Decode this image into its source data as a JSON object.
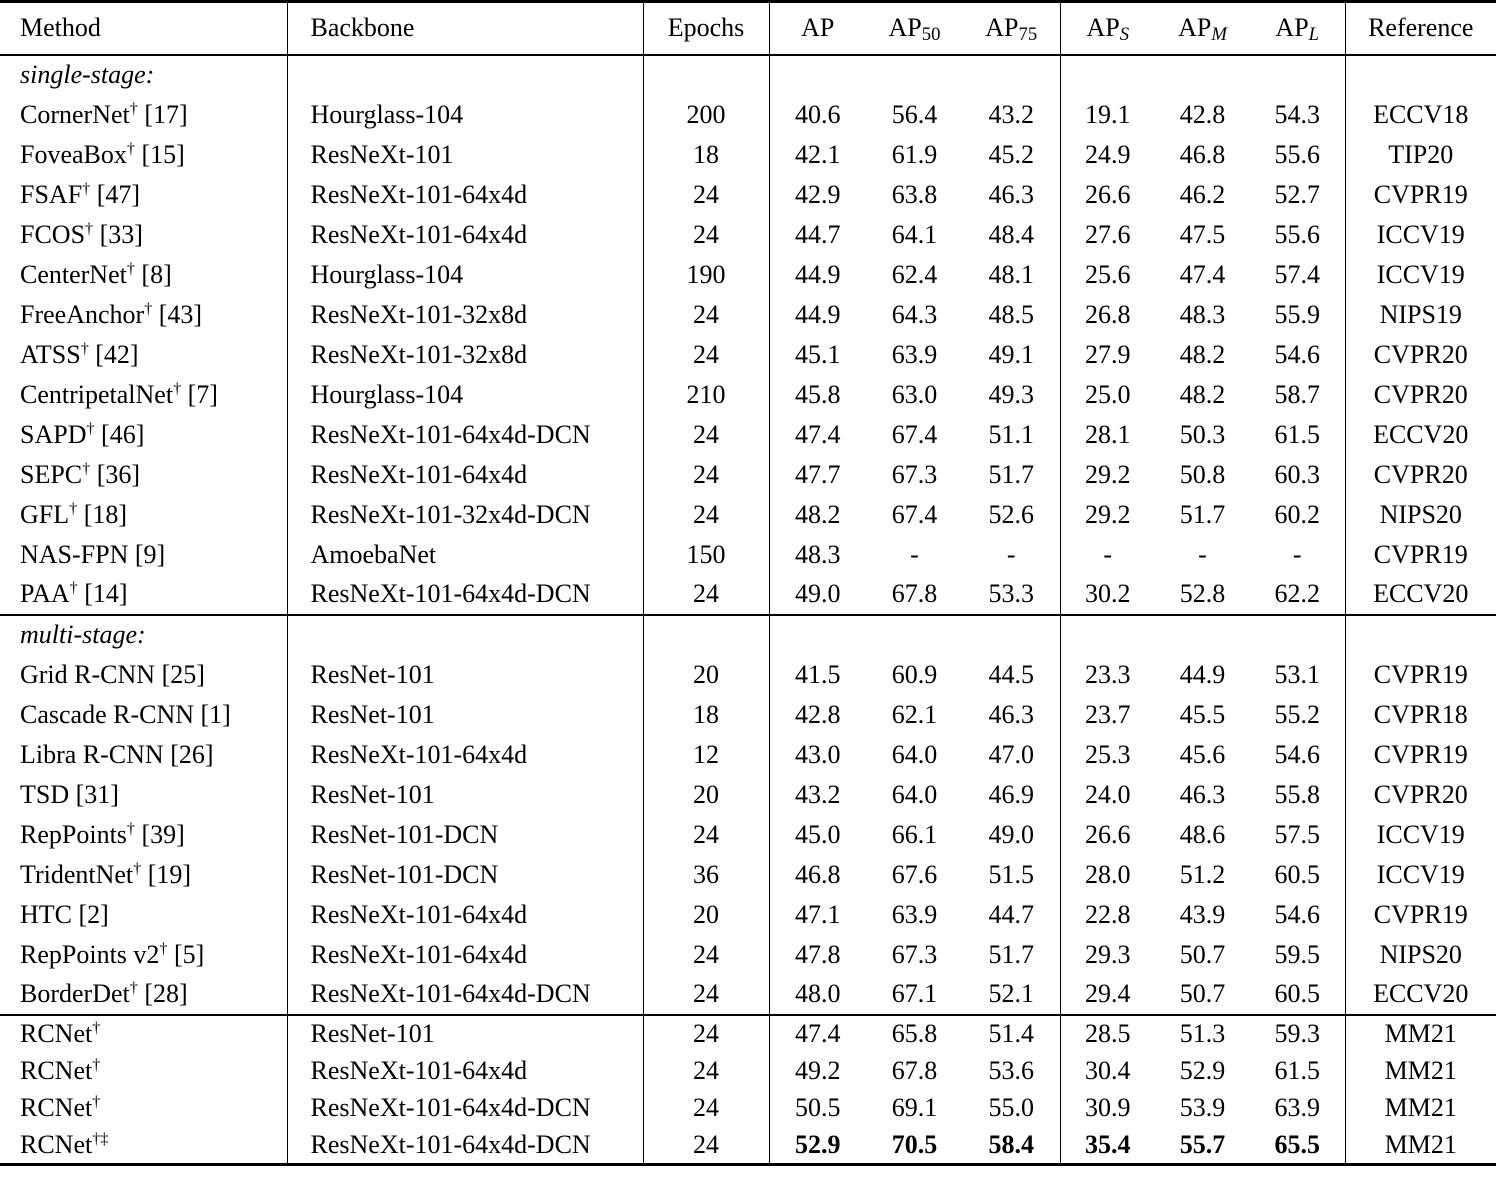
{
  "table": {
    "columns": [
      {
        "key": "method",
        "label": "Method"
      },
      {
        "key": "backbone",
        "label": "Backbone"
      },
      {
        "key": "epochs",
        "label": "Epochs"
      },
      {
        "key": "ap",
        "label": "AP",
        "sub": ""
      },
      {
        "key": "ap50",
        "label": "AP",
        "sub": "50"
      },
      {
        "key": "ap75",
        "label": "AP",
        "sub": "75"
      },
      {
        "key": "aps",
        "label": "AP",
        "sub": "S"
      },
      {
        "key": "apm",
        "label": "AP",
        "sub": "M"
      },
      {
        "key": "apl",
        "label": "AP",
        "sub": "L"
      },
      {
        "key": "reference",
        "label": "Reference"
      }
    ],
    "sections": [
      {
        "label": "single-stage:",
        "rows": [
          {
            "method": {
              "name": "CornerNet",
              "marker": "†",
              "cite": "[17]"
            },
            "backbone": "Hourglass-104",
            "epochs": "200",
            "values": [
              "40.6",
              "56.4",
              "43.2",
              "19.1",
              "42.8",
              "54.3"
            ],
            "reference": "ECCV18",
            "bold_values": false
          },
          {
            "method": {
              "name": "FoveaBox",
              "marker": "†",
              "cite": "[15]"
            },
            "backbone": "ResNeXt-101",
            "epochs": "18",
            "values": [
              "42.1",
              "61.9",
              "45.2",
              "24.9",
              "46.8",
              "55.6"
            ],
            "reference": "TIP20",
            "bold_values": false
          },
          {
            "method": {
              "name": "FSAF",
              "marker": "†",
              "cite": "[47]"
            },
            "backbone": "ResNeXt-101-64x4d",
            "epochs": "24",
            "values": [
              "42.9",
              "63.8",
              "46.3",
              "26.6",
              "46.2",
              "52.7"
            ],
            "reference": "CVPR19",
            "bold_values": false
          },
          {
            "method": {
              "name": "FCOS",
              "marker": "†",
              "cite": "[33]"
            },
            "backbone": "ResNeXt-101-64x4d",
            "epochs": "24",
            "values": [
              "44.7",
              "64.1",
              "48.4",
              "27.6",
              "47.5",
              "55.6"
            ],
            "reference": "ICCV19",
            "bold_values": false
          },
          {
            "method": {
              "name": "CenterNet",
              "marker": "†",
              "cite": "[8]"
            },
            "backbone": "Hourglass-104",
            "epochs": "190",
            "values": [
              "44.9",
              "62.4",
              "48.1",
              "25.6",
              "47.4",
              "57.4"
            ],
            "reference": "ICCV19",
            "bold_values": false
          },
          {
            "method": {
              "name": "FreeAnchor",
              "marker": "†",
              "cite": "[43]"
            },
            "backbone": "ResNeXt-101-32x8d",
            "epochs": "24",
            "values": [
              "44.9",
              "64.3",
              "48.5",
              "26.8",
              "48.3",
              "55.9"
            ],
            "reference": "NIPS19",
            "bold_values": false
          },
          {
            "method": {
              "name": "ATSS",
              "marker": "†",
              "cite": "[42]"
            },
            "backbone": "ResNeXt-101-32x8d",
            "epochs": "24",
            "values": [
              "45.1",
              "63.9",
              "49.1",
              "27.9",
              "48.2",
              "54.6"
            ],
            "reference": "CVPR20",
            "bold_values": false
          },
          {
            "method": {
              "name": "CentripetalNet",
              "marker": "†",
              "cite": "[7]"
            },
            "backbone": "Hourglass-104",
            "epochs": "210",
            "values": [
              "45.8",
              "63.0",
              "49.3",
              "25.0",
              "48.2",
              "58.7"
            ],
            "reference": "CVPR20",
            "bold_values": false
          },
          {
            "method": {
              "name": "SAPD",
              "marker": "†",
              "cite": "[46]"
            },
            "backbone": "ResNeXt-101-64x4d-DCN",
            "epochs": "24",
            "values": [
              "47.4",
              "67.4",
              "51.1",
              "28.1",
              "50.3",
              "61.5"
            ],
            "reference": "ECCV20",
            "bold_values": false
          },
          {
            "method": {
              "name": "SEPC",
              "marker": "†",
              "cite": "[36]"
            },
            "backbone": "ResNeXt-101-64x4d",
            "epochs": "24",
            "values": [
              "47.7",
              "67.3",
              "51.7",
              "29.2",
              "50.8",
              "60.3"
            ],
            "reference": "CVPR20",
            "bold_values": false
          },
          {
            "method": {
              "name": "GFL",
              "marker": "†",
              "cite": "[18]"
            },
            "backbone": "ResNeXt-101-32x4d-DCN",
            "epochs": "24",
            "values": [
              "48.2",
              "67.4",
              "52.6",
              "29.2",
              "51.7",
              "60.2"
            ],
            "reference": "NIPS20",
            "bold_values": false
          },
          {
            "method": {
              "name": "NAS-FPN",
              "marker": "",
              "cite": "[9]"
            },
            "backbone": "AmoebaNet",
            "epochs": "150",
            "values": [
              "48.3",
              "-",
              "-",
              "-",
              "-",
              "-"
            ],
            "reference": "CVPR19",
            "bold_values": false
          },
          {
            "method": {
              "name": "PAA",
              "marker": "†",
              "cite": "[14]"
            },
            "backbone": "ResNeXt-101-64x4d-DCN",
            "epochs": "24",
            "values": [
              "49.0",
              "67.8",
              "53.3",
              "30.2",
              "52.8",
              "62.2"
            ],
            "reference": "ECCV20",
            "bold_values": false
          }
        ]
      },
      {
        "label": "multi-stage:",
        "rows": [
          {
            "method": {
              "name": "Grid R-CNN",
              "marker": "",
              "cite": "[25]"
            },
            "backbone": "ResNet-101",
            "epochs": "20",
            "values": [
              "41.5",
              "60.9",
              "44.5",
              "23.3",
              "44.9",
              "53.1"
            ],
            "reference": "CVPR19",
            "bold_values": false
          },
          {
            "method": {
              "name": "Cascade R-CNN",
              "marker": "",
              "cite": "[1]"
            },
            "backbone": "ResNet-101",
            "epochs": "18",
            "values": [
              "42.8",
              "62.1",
              "46.3",
              "23.7",
              "45.5",
              "55.2"
            ],
            "reference": "CVPR18",
            "bold_values": false
          },
          {
            "method": {
              "name": "Libra R-CNN",
              "marker": "",
              "cite": "[26]"
            },
            "backbone": "ResNeXt-101-64x4d",
            "epochs": "12",
            "values": [
              "43.0",
              "64.0",
              "47.0",
              "25.3",
              "45.6",
              "54.6"
            ],
            "reference": "CVPR19",
            "bold_values": false
          },
          {
            "method": {
              "name": "TSD",
              "marker": "",
              "cite": "[31]"
            },
            "backbone": "ResNet-101",
            "epochs": "20",
            "values": [
              "43.2",
              "64.0",
              "46.9",
              "24.0",
              "46.3",
              "55.8"
            ],
            "reference": "CVPR20",
            "bold_values": false
          },
          {
            "method": {
              "name": "RepPoints",
              "marker": "†",
              "cite": "[39]"
            },
            "backbone": "ResNet-101-DCN",
            "epochs": "24",
            "values": [
              "45.0",
              "66.1",
              "49.0",
              "26.6",
              "48.6",
              "57.5"
            ],
            "reference": "ICCV19",
            "bold_values": false
          },
          {
            "method": {
              "name": "TridentNet",
              "marker": "†",
              "cite": "[19]"
            },
            "backbone": "ResNet-101-DCN",
            "epochs": "36",
            "values": [
              "46.8",
              "67.6",
              "51.5",
              "28.0",
              "51.2",
              "60.5"
            ],
            "reference": "ICCV19",
            "bold_values": false
          },
          {
            "method": {
              "name": "HTC",
              "marker": "",
              "cite": "[2]"
            },
            "backbone": "ResNeXt-101-64x4d",
            "epochs": "20",
            "values": [
              "47.1",
              "63.9",
              "44.7",
              "22.8",
              "43.9",
              "54.6"
            ],
            "reference": "CVPR19",
            "bold_values": false
          },
          {
            "method": {
              "name": "RepPoints v2",
              "marker": "†",
              "cite": "[5]"
            },
            "backbone": "ResNeXt-101-64x4d",
            "epochs": "24",
            "values": [
              "47.8",
              "67.3",
              "51.7",
              "29.3",
              "50.7",
              "59.5"
            ],
            "reference": "NIPS20",
            "bold_values": false
          },
          {
            "method": {
              "name": "BorderDet",
              "marker": "†",
              "cite": "[28]"
            },
            "backbone": "ResNeXt-101-64x4d-DCN",
            "epochs": "24",
            "values": [
              "48.0",
              "67.1",
              "52.1",
              "29.4",
              "50.7",
              "60.5"
            ],
            "reference": "ECCV20",
            "bold_values": false
          }
        ]
      },
      {
        "label": null,
        "rows": [
          {
            "method": {
              "name": "RCNet",
              "marker": "†",
              "cite": ""
            },
            "backbone": "ResNet-101",
            "epochs": "24",
            "values": [
              "47.4",
              "65.8",
              "51.4",
              "28.5",
              "51.3",
              "59.3"
            ],
            "reference": "MM21",
            "bold_values": false
          },
          {
            "method": {
              "name": "RCNet",
              "marker": "†",
              "cite": ""
            },
            "backbone": "ResNeXt-101-64x4d",
            "epochs": "24",
            "values": [
              "49.2",
              "67.8",
              "53.6",
              "30.4",
              "52.9",
              "61.5"
            ],
            "reference": "MM21",
            "bold_values": false
          },
          {
            "method": {
              "name": "RCNet",
              "marker": "†",
              "cite": ""
            },
            "backbone": "ResNeXt-101-64x4d-DCN",
            "epochs": "24",
            "values": [
              "50.5",
              "69.1",
              "55.0",
              "30.9",
              "53.9",
              "63.9"
            ],
            "reference": "MM21",
            "bold_values": false
          },
          {
            "method": {
              "name": "RCNet",
              "marker": "†‡",
              "cite": ""
            },
            "backbone": "ResNeXt-101-64x4d-DCN",
            "epochs": "24",
            "values": [
              "52.9",
              "70.5",
              "58.4",
              "35.4",
              "55.7",
              "65.5"
            ],
            "reference": "MM21",
            "bold_values": true
          }
        ]
      }
    ]
  }
}
